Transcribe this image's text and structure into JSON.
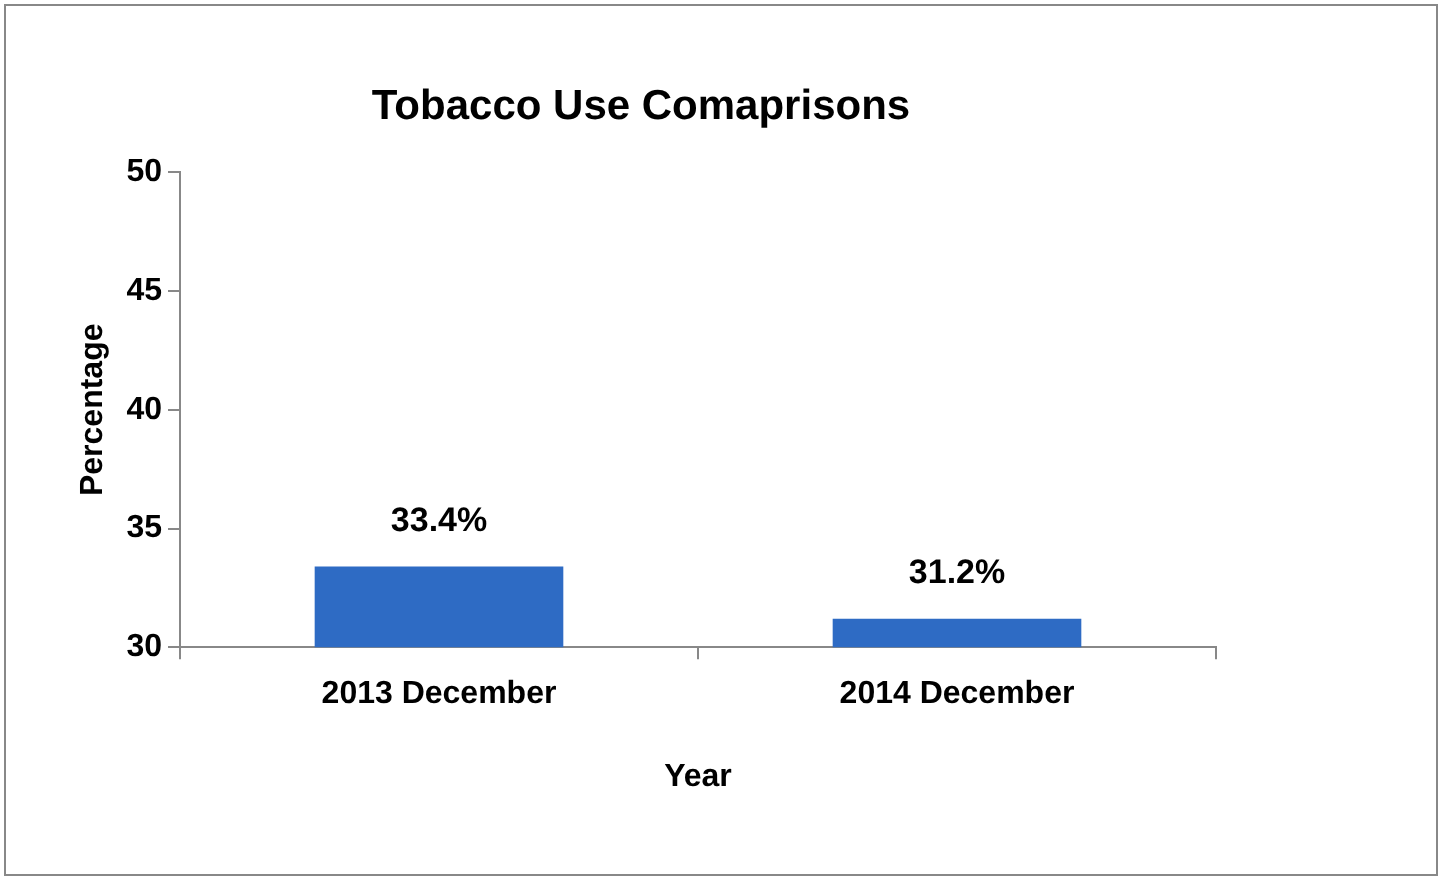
{
  "chart_data": {
    "type": "bar",
    "title": "Tobacco Use Comaprisons",
    "xlabel": "Year",
    "ylabel": "Percentage",
    "categories": [
      "2013 December",
      "2014 December"
    ],
    "values": [
      33.4,
      31.2
    ],
    "value_labels": [
      "33.4%",
      "31.2%"
    ],
    "color": "#2e6bc4",
    "ylim": [
      30,
      50
    ],
    "yticks": [
      30,
      35,
      40,
      45,
      50
    ],
    "grid": false,
    "legend": false
  }
}
